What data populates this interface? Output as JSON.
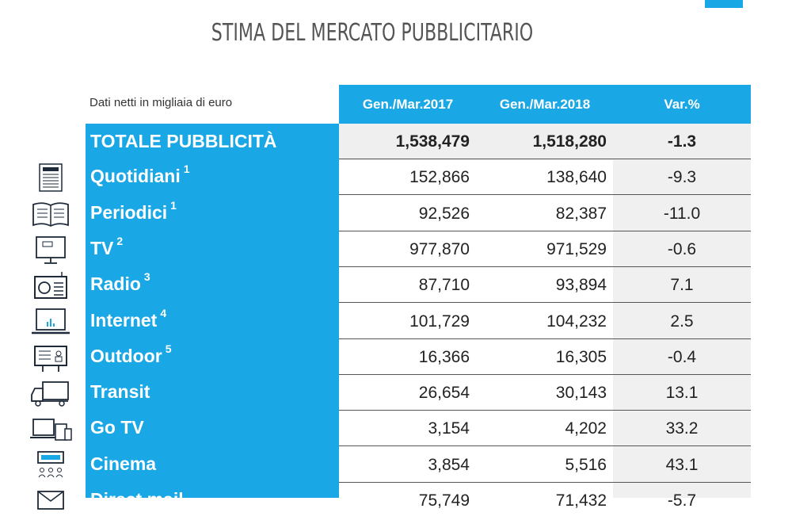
{
  "title": "STIMA DEL MERCATO PUBBLICITARIO",
  "note": "Dati netti in migliaia di euro",
  "colors": {
    "accent": "#1aa7e6",
    "shade": "#f0f0f0"
  },
  "chart_data": {
    "type": "table",
    "columns": [
      "Gen./Mar.2017",
      "Gen./Mar.2018",
      "Var.%"
    ],
    "rows": [
      {
        "label": "TOTALE PUBBLICITÀ",
        "sup": "",
        "v2017": "1,538,479",
        "v2018": "1,518,280",
        "var": "-1.3",
        "icon": ""
      },
      {
        "label": "Quotidiani",
        "sup": "1",
        "v2017": "152,866",
        "v2018": "138,640",
        "var": "-9.3",
        "icon": "newspaper-icon"
      },
      {
        "label": "Periodici",
        "sup": "1",
        "v2017": "92,526",
        "v2018": "82,387",
        "var": "-11.0",
        "icon": "magazine-icon"
      },
      {
        "label": "TV",
        "sup": "2",
        "v2017": "977,870",
        "v2018": "971,529",
        "var": "-0.6",
        "icon": "tv-icon"
      },
      {
        "label": "Radio",
        "sup": "3",
        "v2017": "87,710",
        "v2018": "93,894",
        "var": "7.1",
        "icon": "radio-icon"
      },
      {
        "label": "Internet",
        "sup": "4",
        "v2017": "101,729",
        "v2018": "104,232",
        "var": "2.5",
        "icon": "laptop-icon"
      },
      {
        "label": "Outdoor",
        "sup": "5",
        "v2017": "16,366",
        "v2018": "16,305",
        "var": "-0.4",
        "icon": "billboard-icon"
      },
      {
        "label": "Transit",
        "sup": "",
        "v2017": "26,654",
        "v2018": "30,143",
        "var": "13.1",
        "icon": "truck-icon"
      },
      {
        "label": "Go TV",
        "sup": "",
        "v2017": "3,154",
        "v2018": "4,202",
        "var": "33.2",
        "icon": "devices-icon"
      },
      {
        "label": "Cinema",
        "sup": "",
        "v2017": "3,854",
        "v2018": "5,516",
        "var": "43.1",
        "icon": "cinema-icon"
      },
      {
        "label": "Direct mail",
        "sup": "",
        "v2017": "75,749",
        "v2018": "71,432",
        "var": "-5.7",
        "icon": "mail-icon"
      }
    ]
  }
}
